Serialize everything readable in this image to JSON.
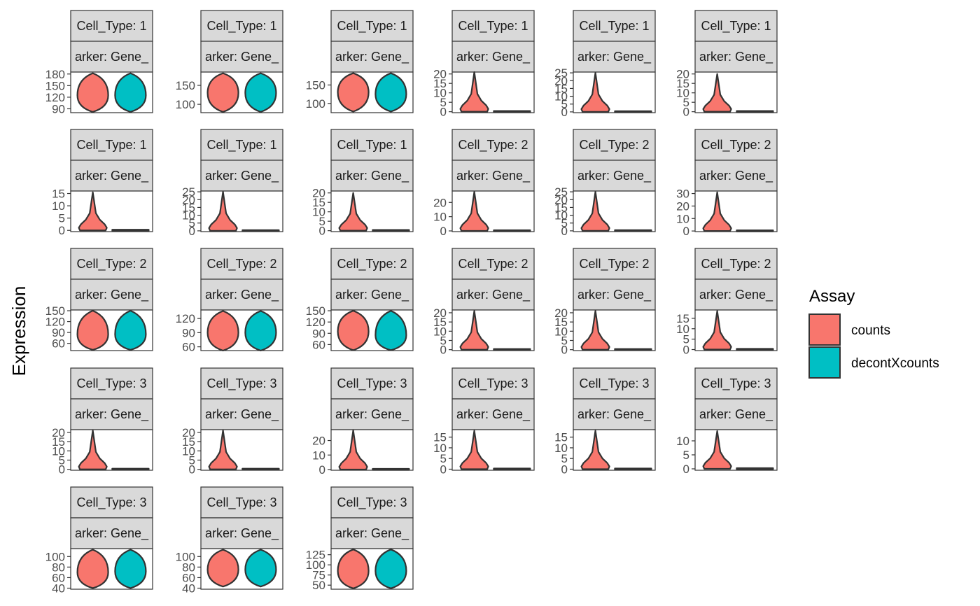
{
  "chart_data": {
    "type": "violin",
    "ylabel": "Expression",
    "legend": {
      "title": "Assay",
      "position": "right",
      "entries": [
        {
          "label": "counts",
          "color": "#F8766D"
        },
        {
          "label": "decontXcounts",
          "color": "#00BFC4"
        }
      ]
    },
    "panels": [
      {
        "cell_type": "Cell_Type: 1",
        "marker": "arker: Gene_",
        "ylim": [
          80,
          185
        ],
        "ticks": [
          "90",
          "120",
          "150",
          "180"
        ],
        "kind": "full",
        "violins": [
          {
            "assay": "counts",
            "min": 82,
            "max": 182,
            "center": 125
          },
          {
            "assay": "decontXcounts",
            "min": 82,
            "max": 182,
            "center": 125
          }
        ]
      },
      {
        "cell_type": "Cell_Type: 1",
        "marker": "arker: Gene_",
        "ylim": [
          78,
          185
        ],
        "ticks": [
          "100",
          "150"
        ],
        "kind": "full",
        "violins": [
          {
            "assay": "counts",
            "min": 80,
            "max": 182,
            "center": 130
          },
          {
            "assay": "decontXcounts",
            "min": 80,
            "max": 182,
            "center": 130
          }
        ]
      },
      {
        "cell_type": "Cell_Type: 1",
        "marker": "arker: Gene_",
        "ylim": [
          75,
          185
        ],
        "ticks": [
          "100",
          "150"
        ],
        "kind": "full",
        "violins": [
          {
            "assay": "counts",
            "min": 78,
            "max": 182,
            "center": 130
          },
          {
            "assay": "decontXcounts",
            "min": 78,
            "max": 182,
            "center": 125
          }
        ]
      },
      {
        "cell_type": "Cell_Type: 1",
        "marker": "arker: Gene_",
        "ylim": [
          -0.5,
          21
        ],
        "ticks": [
          "0",
          "5",
          "10",
          "15",
          "20"
        ],
        "kind": "skew",
        "violins": [
          {
            "assay": "counts",
            "min": 0,
            "max": 21
          },
          {
            "assay": "decontXcounts",
            "min": 0,
            "max": 0.3
          }
        ]
      },
      {
        "cell_type": "Cell_Type: 1",
        "marker": "arker: Gene_",
        "ylim": [
          -0.5,
          25.5
        ],
        "ticks": [
          "0",
          "5",
          "10",
          "15",
          "20",
          "25"
        ],
        "kind": "skew",
        "violins": [
          {
            "assay": "counts",
            "min": 0,
            "max": 25
          },
          {
            "assay": "decontXcounts",
            "min": 0,
            "max": 0.3
          }
        ]
      },
      {
        "cell_type": "Cell_Type: 1",
        "marker": "arker: Gene_",
        "ylim": [
          -0.5,
          21
        ],
        "ticks": [
          "0",
          "5",
          "10",
          "15",
          "20"
        ],
        "kind": "skew",
        "violins": [
          {
            "assay": "counts",
            "min": 0,
            "max": 20
          },
          {
            "assay": "decontXcounts",
            "min": 0,
            "max": 0.5
          }
        ]
      },
      {
        "cell_type": "Cell_Type: 1",
        "marker": "arker: Gene_",
        "ylim": [
          -0.5,
          16
        ],
        "ticks": [
          "0",
          "5",
          "10",
          "15"
        ],
        "kind": "skew",
        "violins": [
          {
            "assay": "counts",
            "min": 0,
            "max": 15.5
          },
          {
            "assay": "decontXcounts",
            "min": 0,
            "max": 0.3
          }
        ]
      },
      {
        "cell_type": "Cell_Type: 1",
        "marker": "arker: Gene_",
        "ylim": [
          -0.5,
          25.5
        ],
        "ticks": [
          "0",
          "5",
          "10",
          "15",
          "20",
          "25"
        ],
        "kind": "skew",
        "violins": [
          {
            "assay": "counts",
            "min": 0,
            "max": 25
          },
          {
            "assay": "decontXcounts",
            "min": 0,
            "max": 0.3
          }
        ]
      },
      {
        "cell_type": "Cell_Type: 1",
        "marker": "arker: Gene_",
        "ylim": [
          -0.5,
          21
        ],
        "ticks": [
          "0",
          "5",
          "10",
          "15",
          "20"
        ],
        "kind": "skew",
        "violins": [
          {
            "assay": "counts",
            "min": 0,
            "max": 20
          },
          {
            "assay": "decontXcounts",
            "min": 0,
            "max": 0.3
          }
        ]
      },
      {
        "cell_type": "Cell_Type: 2",
        "marker": "arker: Gene_",
        "ylim": [
          -0.5,
          28
        ],
        "ticks": [
          "0",
          "10",
          "20"
        ],
        "kind": "skew",
        "violins": [
          {
            "assay": "counts",
            "min": 0,
            "max": 27.5
          },
          {
            "assay": "decontXcounts",
            "min": 0,
            "max": 0.3
          }
        ]
      },
      {
        "cell_type": "Cell_Type: 2",
        "marker": "arker: Gene_",
        "ylim": [
          -0.5,
          25.5
        ],
        "ticks": [
          "0",
          "5",
          "10",
          "15",
          "20",
          "25"
        ],
        "kind": "skew",
        "violins": [
          {
            "assay": "counts",
            "min": 0,
            "max": 25
          },
          {
            "assay": "decontXcounts",
            "min": 0,
            "max": 0.3
          }
        ]
      },
      {
        "cell_type": "Cell_Type: 2",
        "marker": "arker: Gene_",
        "ylim": [
          -0.5,
          32
        ],
        "ticks": [
          "0",
          "10",
          "20",
          "30"
        ],
        "kind": "skew",
        "violins": [
          {
            "assay": "counts",
            "min": 0,
            "max": 31
          },
          {
            "assay": "decontXcounts",
            "min": 0,
            "max": 0.3
          }
        ]
      },
      {
        "cell_type": "Cell_Type: 2",
        "marker": "arker: Gene_",
        "ylim": [
          40,
          152
        ],
        "ticks": [
          "60",
          "90",
          "120",
          "150"
        ],
        "kind": "full",
        "violins": [
          {
            "assay": "counts",
            "min": 42,
            "max": 150,
            "center": 85
          },
          {
            "assay": "decontXcounts",
            "min": 42,
            "max": 150,
            "center": 85
          }
        ]
      },
      {
        "cell_type": "Cell_Type: 2",
        "marker": "arker: Gene_",
        "ylim": [
          52,
          138
        ],
        "ticks": [
          "60",
          "90",
          "120"
        ],
        "kind": "full",
        "violins": [
          {
            "assay": "counts",
            "min": 52,
            "max": 136,
            "center": 90
          },
          {
            "assay": "decontXcounts",
            "min": 52,
            "max": 136,
            "center": 90
          }
        ]
      },
      {
        "cell_type": "Cell_Type: 2",
        "marker": "arker: Gene_",
        "ylim": [
          44,
          152
        ],
        "ticks": [
          "60",
          "90",
          "120",
          "150"
        ],
        "kind": "full",
        "violins": [
          {
            "assay": "counts",
            "min": 45,
            "max": 150,
            "center": 95
          },
          {
            "assay": "decontXcounts",
            "min": 45,
            "max": 150,
            "center": 85
          }
        ]
      },
      {
        "cell_type": "Cell_Type: 2",
        "marker": "arker: Gene_",
        "ylim": [
          -0.5,
          21.5
        ],
        "ticks": [
          "0",
          "5",
          "10",
          "15",
          "20"
        ],
        "kind": "skew",
        "violins": [
          {
            "assay": "counts",
            "min": 0,
            "max": 21
          },
          {
            "assay": "decontXcounts",
            "min": 0,
            "max": 0.3
          }
        ]
      },
      {
        "cell_type": "Cell_Type: 2",
        "marker": "arker: Gene_",
        "ylim": [
          -0.5,
          21.5
        ],
        "ticks": [
          "0",
          "5",
          "10",
          "15",
          "20"
        ],
        "kind": "skew",
        "violins": [
          {
            "assay": "counts",
            "min": 0,
            "max": 21
          },
          {
            "assay": "decontXcounts",
            "min": 0,
            "max": 1
          }
        ]
      },
      {
        "cell_type": "Cell_Type: 2",
        "marker": "arker: Gene_",
        "ylim": [
          -0.5,
          19
        ],
        "ticks": [
          "0",
          "5",
          "10",
          "15"
        ],
        "kind": "skew",
        "violins": [
          {
            "assay": "counts",
            "min": 0,
            "max": 18.5
          },
          {
            "assay": "decontXcounts",
            "min": 0,
            "max": 0.3
          }
        ]
      },
      {
        "cell_type": "Cell_Type: 3",
        "marker": "arker: Gene_",
        "ylim": [
          -0.5,
          21.5
        ],
        "ticks": [
          "0",
          "5",
          "10",
          "15",
          "20"
        ],
        "kind": "skew",
        "violins": [
          {
            "assay": "counts",
            "min": 0,
            "max": 21
          },
          {
            "assay": "decontXcounts",
            "min": 0,
            "max": 0.3
          }
        ]
      },
      {
        "cell_type": "Cell_Type: 3",
        "marker": "arker: Gene_",
        "ylim": [
          -0.5,
          21.5
        ],
        "ticks": [
          "0",
          "5",
          "10",
          "15",
          "20"
        ],
        "kind": "skew",
        "violins": [
          {
            "assay": "counts",
            "min": 0,
            "max": 21
          },
          {
            "assay": "decontXcounts",
            "min": 0,
            "max": 0.3
          }
        ]
      },
      {
        "cell_type": "Cell_Type: 3",
        "marker": "arker: Gene_",
        "ylim": [
          -0.5,
          27.5
        ],
        "ticks": [
          "0",
          "10",
          "20"
        ],
        "kind": "skew",
        "violins": [
          {
            "assay": "counts",
            "min": 0,
            "max": 27
          },
          {
            "assay": "decontXcounts",
            "min": 0,
            "max": 0.3
          }
        ]
      },
      {
        "cell_type": "Cell_Type: 3",
        "marker": "arker: Gene_",
        "ylim": [
          -0.5,
          18.5
        ],
        "ticks": [
          "0",
          "5",
          "10",
          "15"
        ],
        "kind": "skew",
        "violins": [
          {
            "assay": "counts",
            "min": 0,
            "max": 18
          },
          {
            "assay": "decontXcounts",
            "min": 0,
            "max": 0.3
          }
        ]
      },
      {
        "cell_type": "Cell_Type: 3",
        "marker": "arker: Gene_",
        "ylim": [
          -0.5,
          18.5
        ],
        "ticks": [
          "0",
          "5",
          "10",
          "15"
        ],
        "kind": "skew",
        "violins": [
          {
            "assay": "counts",
            "min": 0,
            "max": 18
          },
          {
            "assay": "decontXcounts",
            "min": 0,
            "max": 0.3
          }
        ]
      },
      {
        "cell_type": "Cell_Type: 3",
        "marker": "arker: Gene_",
        "ylim": [
          -0.5,
          14
        ],
        "ticks": [
          "0",
          "5",
          "10"
        ],
        "kind": "skew",
        "violins": [
          {
            "assay": "counts",
            "min": 0,
            "max": 13.5
          },
          {
            "assay": "decontXcounts",
            "min": 0,
            "max": 0.3
          }
        ]
      },
      {
        "cell_type": "Cell_Type: 3",
        "marker": "arker: Gene_",
        "ylim": [
          38,
          115
        ],
        "ticks": [
          "40",
          "60",
          "80",
          "100"
        ],
        "kind": "full",
        "violins": [
          {
            "assay": "counts",
            "min": 40,
            "max": 113,
            "center": 70
          },
          {
            "assay": "decontXcounts",
            "min": 40,
            "max": 113,
            "center": 72
          }
        ]
      },
      {
        "cell_type": "Cell_Type: 3",
        "marker": "arker: Gene_",
        "ylim": [
          38,
          115
        ],
        "ticks": [
          "40",
          "60",
          "80",
          "100"
        ],
        "kind": "full",
        "violins": [
          {
            "assay": "counts",
            "min": 43,
            "max": 113,
            "center": 75
          },
          {
            "assay": "decontXcounts",
            "min": 43,
            "max": 113,
            "center": 75
          }
        ]
      },
      {
        "cell_type": "Cell_Type: 3",
        "marker": "arker: Gene_",
        "ylim": [
          40,
          140
        ],
        "ticks": [
          "50",
          "75",
          "100",
          "125"
        ],
        "kind": "full",
        "violins": [
          {
            "assay": "counts",
            "min": 42,
            "max": 138,
            "center": 85
          },
          {
            "assay": "decontXcounts",
            "min": 42,
            "max": 138,
            "center": 85
          }
        ]
      }
    ]
  }
}
